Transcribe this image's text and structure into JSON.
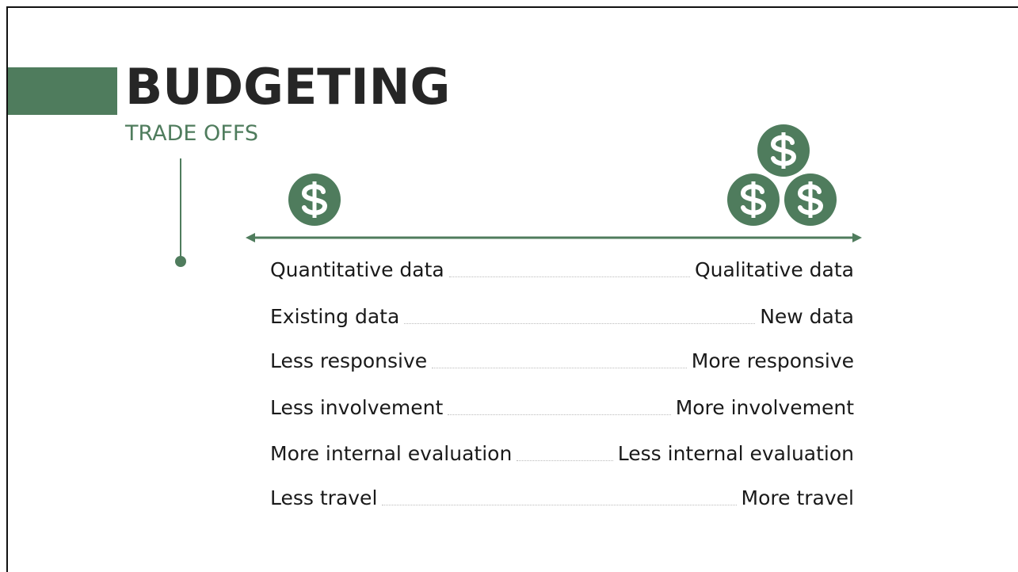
{
  "header": {
    "title": "BUDGETING",
    "subtitle": "TRADE OFFS"
  },
  "rows": [
    {
      "left": "Quantitative data",
      "right": "Qualitative data"
    },
    {
      "left": "Existing data",
      "right": "New data"
    },
    {
      "left": "Less responsive",
      "right": "More responsive"
    },
    {
      "left": "Less involvement",
      "right": "More involvement"
    },
    {
      "left": "More internal evaluation",
      "right": "Less internal evaluation"
    },
    {
      "left": "Less travel",
      "right": "More travel"
    }
  ]
}
